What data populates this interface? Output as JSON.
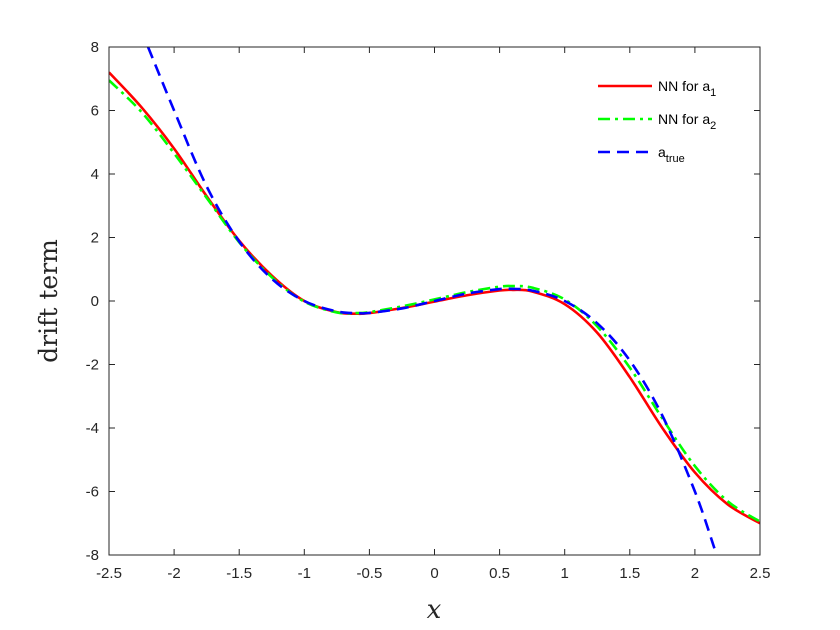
{
  "chart_data": {
    "type": "line",
    "title": "",
    "xlabel": "x",
    "ylabel": "drift term",
    "xlim": [
      -2.5,
      2.5
    ],
    "ylim": [
      -8,
      8
    ],
    "xticks": [
      -2.5,
      -2,
      -1.5,
      -1,
      -0.5,
      0,
      0.5,
      1,
      1.5,
      2,
      2.5
    ],
    "xtick_labels": [
      "-2.5",
      "-2",
      "-1.5",
      "-1",
      "-0.5",
      "0",
      "0.5",
      "1",
      "1.5",
      "2",
      "2.5"
    ],
    "yticks": [
      -8,
      -6,
      -4,
      -2,
      0,
      2,
      4,
      6,
      8
    ],
    "ytick_labels": [
      "-8",
      "-6",
      "-4",
      "-2",
      "0",
      "2",
      "4",
      "6",
      "8"
    ],
    "grid": false,
    "legend_position": "top-right",
    "series": [
      {
        "name": "NN for a",
        "name_subscript": "1",
        "color": "#ff0000",
        "dash": "solid",
        "x": [
          -2.5,
          -2.25,
          -2.0,
          -1.75,
          -1.5,
          -1.25,
          -1.0,
          -0.75,
          -0.6,
          -0.5,
          -0.25,
          0.0,
          0.25,
          0.5,
          0.6,
          0.75,
          1.0,
          1.25,
          1.5,
          1.75,
          2.0,
          2.25,
          2.5
        ],
        "y": [
          7.2,
          6.1,
          4.8,
          3.3,
          1.9,
          0.8,
          0.0,
          -0.35,
          -0.4,
          -0.38,
          -0.22,
          -0.02,
          0.18,
          0.33,
          0.35,
          0.3,
          -0.1,
          -1.0,
          -2.4,
          -4.0,
          -5.4,
          -6.4,
          -7.0
        ]
      },
      {
        "name": "NN for a",
        "name_subscript": "2",
        "color": "#00ff00",
        "dash": "dashdot",
        "x": [
          -2.5,
          -2.25,
          -2.0,
          -1.75,
          -1.5,
          -1.25,
          -1.0,
          -0.75,
          -0.6,
          -0.5,
          -0.25,
          0.0,
          0.25,
          0.5,
          0.6,
          0.75,
          1.0,
          1.25,
          1.5,
          1.75,
          2.0,
          2.25,
          2.5
        ],
        "y": [
          6.95,
          5.95,
          4.65,
          3.25,
          1.85,
          0.75,
          -0.02,
          -0.36,
          -0.38,
          -0.35,
          -0.17,
          0.05,
          0.28,
          0.45,
          0.47,
          0.42,
          0.05,
          -0.8,
          -2.1,
          -3.7,
          -5.2,
          -6.3,
          -6.95
        ]
      },
      {
        "name": "a",
        "name_subscript": "true",
        "color": "#0000ff",
        "dash": "dashed",
        "x": [
          -2.2,
          -2.0,
          -1.75,
          -1.5,
          -1.25,
          -1.0,
          -0.75,
          -0.577,
          -0.5,
          -0.25,
          0.0,
          0.25,
          0.5,
          0.577,
          0.75,
          1.0,
          1.25,
          1.5,
          1.75,
          2.0,
          2.15
        ],
        "y": [
          8.0,
          6.0,
          3.61,
          1.875,
          0.703,
          0.0,
          -0.328,
          -0.385,
          -0.375,
          -0.234,
          0.0,
          0.234,
          0.375,
          0.385,
          0.328,
          0.0,
          -0.703,
          -1.875,
          -3.61,
          -6.0,
          -7.79
        ]
      }
    ]
  }
}
